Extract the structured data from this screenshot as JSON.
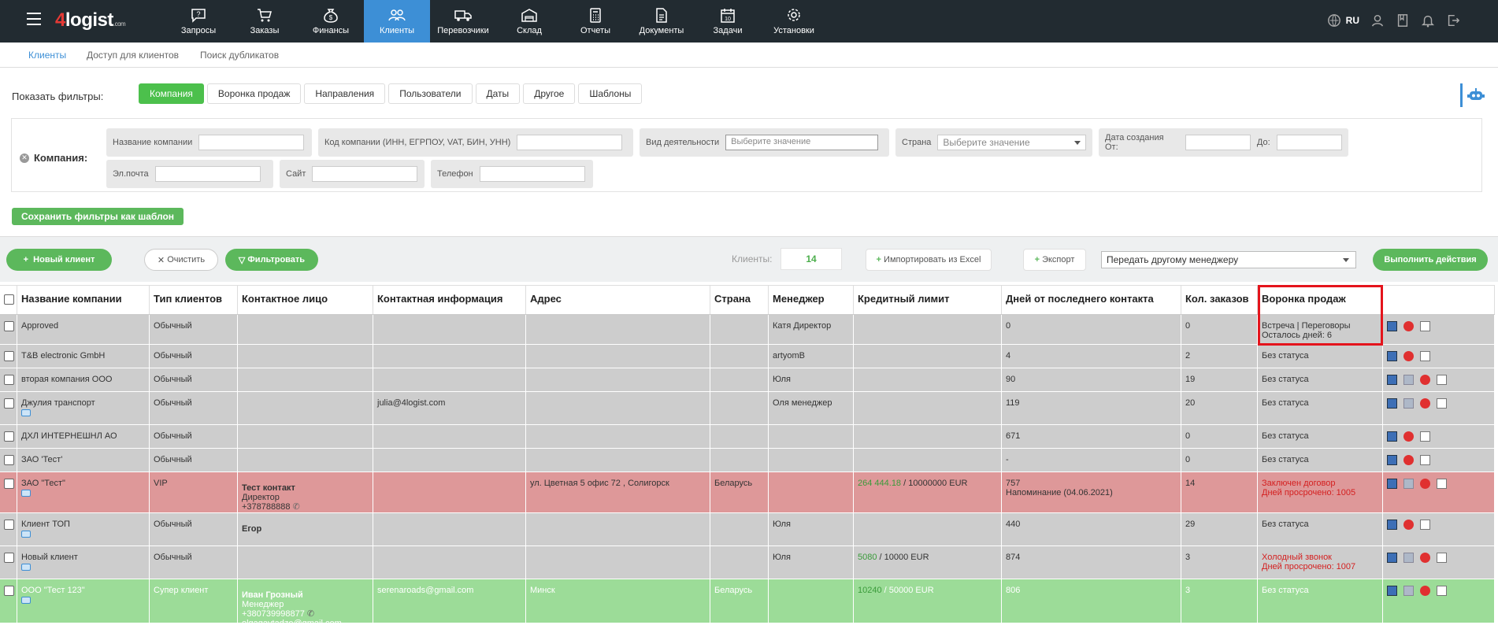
{
  "brand": {
    "logo_four": "4",
    "logo_rest": "logist",
    "logo_com": ".com"
  },
  "nav": [
    {
      "label": "Запросы",
      "icon": "question-chat-icon"
    },
    {
      "label": "Заказы",
      "icon": "cart-icon"
    },
    {
      "label": "Финансы",
      "icon": "money-bag-icon"
    },
    {
      "label": "Клиенты",
      "icon": "users-icon",
      "active": true
    },
    {
      "label": "Перевозчики",
      "icon": "truck-icon"
    },
    {
      "label": "Склад",
      "icon": "warehouse-icon"
    },
    {
      "label": "Отчеты",
      "icon": "calculator-icon"
    },
    {
      "label": "Документы",
      "icon": "document-icon"
    },
    {
      "label": "Задачи",
      "icon": "calendar-icon"
    },
    {
      "label": "Установки",
      "icon": "gear-icon"
    }
  ],
  "top_right": {
    "lang": "RU"
  },
  "subnav": [
    "Клиенты",
    "Доступ для клиентов",
    "Поиск дубликатов"
  ],
  "filters": {
    "label": "Показать фильтры:",
    "tabs": [
      "Компания",
      "Воронка продаж",
      "Направления",
      "Пользователи",
      "Даты",
      "Другое",
      "Шаблоны"
    ],
    "company_label": "Компания:",
    "fields": {
      "name": "Название компании",
      "code": "Код компании (ИНН, ЕГРПОУ, VAT, БИН, УНН)",
      "activity": "Вид деятельности",
      "activity_placeholder": "Выберите значение",
      "country": "Страна",
      "country_placeholder": "Выберите значение",
      "date_from": "Дата создания От:",
      "date_to": "До:",
      "email": "Эл.почта",
      "site": "Сайт",
      "phone": "Телефон"
    },
    "save_template": "Сохранить фильтры как шаблон"
  },
  "actions": {
    "new_client": "Новый клиент",
    "clear": "Очистить",
    "filter": "Фильтровать",
    "clients_label": "Клиенты:",
    "clients_count": "14",
    "import": "Импортировать из Excel",
    "export": "Экспорт",
    "transfer": "Передать другому менеджеру",
    "execute": "Выполнить действия"
  },
  "table": {
    "headers": [
      "Название компании",
      "Тип клиентов",
      "Контактное лицо",
      "Контактная информация",
      "Адрес",
      "Страна",
      "Менеджер",
      "Кредитный лимит",
      "Дней от последнего контакта",
      "Кол. заказов",
      "Воронка продаж"
    ],
    "rows": [
      {
        "name": "Approved",
        "type": "Обычный",
        "contact": "",
        "contact_role": "",
        "contact_phone": "",
        "info": "",
        "address": "",
        "country": "",
        "manager": "Катя Директор",
        "credit_used": "",
        "credit_total": "",
        "days": "0",
        "days_note": "",
        "orders": "0",
        "funnel": "Встреча | Переговоры",
        "funnel2": "Осталось дней: 6",
        "funnel_red": false
      },
      {
        "name": "T&B electronic GmbH",
        "type": "Обычный",
        "contact": "",
        "contact_role": "",
        "contact_phone": "",
        "info": "",
        "address": "",
        "country": "",
        "manager": "artyomB",
        "credit_used": "",
        "credit_total": "",
        "days": "4",
        "days_note": "",
        "orders": "2",
        "funnel": "Без статуса",
        "funnel2": "",
        "funnel_red": false
      },
      {
        "name": "вторая компания ООО",
        "type": "Обычный",
        "contact": "",
        "contact_role": "",
        "contact_phone": "",
        "info": "",
        "address": "",
        "country": "",
        "manager": "Юля",
        "credit_used": "",
        "credit_total": "",
        "days": "90",
        "days_note": "",
        "orders": "19",
        "funnel": "Без статуса",
        "funnel2": "",
        "funnel_red": false
      },
      {
        "name": "Джулия транспорт",
        "type": "Обычный",
        "contact": "",
        "contact_role": "",
        "contact_phone": "",
        "info": "julia@4logist.com",
        "address": "",
        "country": "",
        "manager": "Оля менеджер",
        "credit_used": "",
        "credit_total": "",
        "days": "119",
        "days_note": "",
        "orders": "20",
        "funnel": "Без статуса",
        "funnel2": "",
        "funnel_red": false
      },
      {
        "name": "ДХЛ ИНТЕРНЕШНЛ АО",
        "type": "Обычный",
        "contact": "",
        "contact_role": "",
        "contact_phone": "",
        "info": "",
        "address": "",
        "country": "",
        "manager": "",
        "credit_used": "",
        "credit_total": "",
        "days": "671",
        "days_note": "",
        "orders": "0",
        "funnel": "Без статуса",
        "funnel2": "",
        "funnel_red": false
      },
      {
        "name": "ЗАО 'Тест'",
        "type": "Обычный",
        "contact": "",
        "contact_role": "",
        "contact_phone": "",
        "info": "",
        "address": "",
        "country": "",
        "manager": "",
        "credit_used": "",
        "credit_total": "",
        "days": "-",
        "days_note": "",
        "orders": "0",
        "funnel": "Без статуса",
        "funnel2": "",
        "funnel_red": false
      },
      {
        "name": "ЗАО \"Тест\"",
        "type": "VIP",
        "contact": "Тест контакт",
        "contact_role": "Директор",
        "contact_phone": "+378788888",
        "info": "",
        "address": "ул. Цветная 5 офис 72 , Солигорск",
        "country": "Беларусь",
        "manager": "",
        "credit_used": "264 444.18",
        "credit_total": " / 10000000 EUR",
        "days": "757",
        "days_note": "Напоминание (04.06.2021)",
        "orders": "14",
        "funnel": "Заключен договор",
        "funnel2": "Дней просрочено: 1005",
        "funnel_red": true
      },
      {
        "name": "Клиент ТОП",
        "type": "Обычный",
        "contact": "Егор",
        "contact_role": "",
        "contact_phone": "",
        "info": "",
        "address": "",
        "country": "",
        "manager": "Юля",
        "credit_used": "",
        "credit_total": "",
        "days": "440",
        "days_note": "",
        "orders": "29",
        "funnel": "Без статуса",
        "funnel2": "",
        "funnel_red": false
      },
      {
        "name": "Новый клиент",
        "type": "Обычный",
        "contact": "",
        "contact_role": "",
        "contact_phone": "",
        "info": "",
        "address": "",
        "country": "",
        "manager": "Юля",
        "credit_used": "5080",
        "credit_total": " / 10000 EUR",
        "days": "874",
        "days_note": "",
        "orders": "3",
        "funnel": "Холодный звонок",
        "funnel2": "Дней просрочено: 1007",
        "funnel_red": true
      },
      {
        "name": "ООО \"Тест 123\"",
        "type": "Супер клиент",
        "contact": "Иван Грозный",
        "contact_role": "Менеджер",
        "contact_phone": "+380739998877",
        "contact_email": "olgagavtadze@gmail.com",
        "info": "serenaroads@gmail.com",
        "address": "Минск",
        "country": "Беларусь",
        "manager": "",
        "credit_used": "10240",
        "credit_total": " / 50000 EUR",
        "days": "806",
        "days_note": "",
        "orders": "3",
        "funnel": "Без статуса",
        "funnel2": "",
        "funnel_red": false
      }
    ]
  },
  "colors": {
    "topbar": "#222b31",
    "active": "#3d8fd6",
    "green": "#5cb85c",
    "row_grey": "#cdcdcd",
    "row_red": "#de9899",
    "row_green": "#9cdc98",
    "highlight": "#e4141c"
  }
}
